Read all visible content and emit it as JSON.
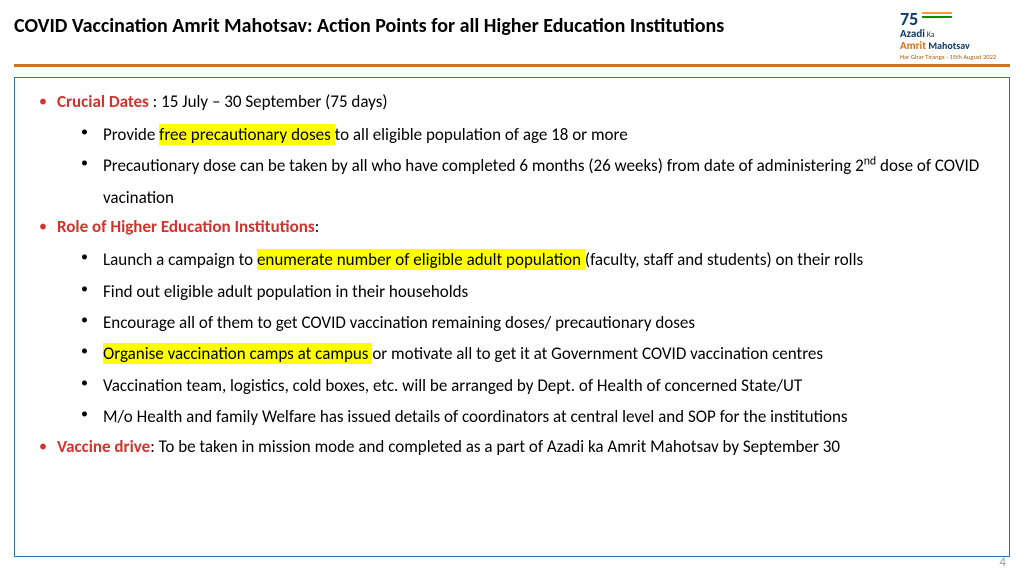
{
  "title": "COVID Vaccination Amrit Mahotsav: Action Points for all Higher Education Institutions",
  "logo": {
    "num": "75",
    "line1": "Azadi",
    "ka": "Ka",
    "line2": "Amrit",
    "line3": "Mahotsav",
    "sub": "Har Ghar Tiranga - 15th August 2022"
  },
  "colors": {
    "accent_rule": "#d86f1a",
    "box_border": "#2f6fb0",
    "red": "#d0342c",
    "highlight": "#ffff00",
    "page_num": "#9a9a9a"
  },
  "font": {
    "body_size_pt": 17,
    "title_size_pt": 20
  },
  "items": [
    {
      "head": "Crucial Dates",
      "text": " : 15 July – 30 September (75 days)",
      "sub": [
        {
          "pre": "Provide ",
          "hl": "free precautionary doses ",
          "post": "to all eligible population of age 18 or more"
        },
        {
          "pre": "Precautionary dose can be taken by all who have completed 6 months (26 weeks) from date of administering 2",
          "sup": "nd",
          "post2": " dose of COVID vacination"
        }
      ]
    },
    {
      "head": "Role of Higher Education Institutions",
      "text": ":",
      "sub": [
        {
          "pre": "Launch a campaign to ",
          "hl": "enumerate number of eligible adult population ",
          "post": "(faculty, staff and students) on their rolls"
        },
        {
          "pre": "Find out eligible adult population in their households"
        },
        {
          "pre": "Encourage all of them to get COVID vaccination remaining doses/ precautionary doses"
        },
        {
          "hl": "Organise vaccination camps at campus ",
          "post": "or motivate all to get it at Government COVID vaccination centres"
        },
        {
          "pre": "Vaccination team, logistics, cold boxes, etc. will be arranged by Dept. of Health of concerned State/UT"
        },
        {
          "pre": "M/o Health and family Welfare has issued details of coordinators at central level and SOP for the institutions"
        }
      ]
    },
    {
      "head": "Vaccine drive",
      "text": ": To be taken in mission mode and completed as a part of Azadi ka Amrit Mahotsav by September 30"
    }
  ],
  "page_number": "4"
}
